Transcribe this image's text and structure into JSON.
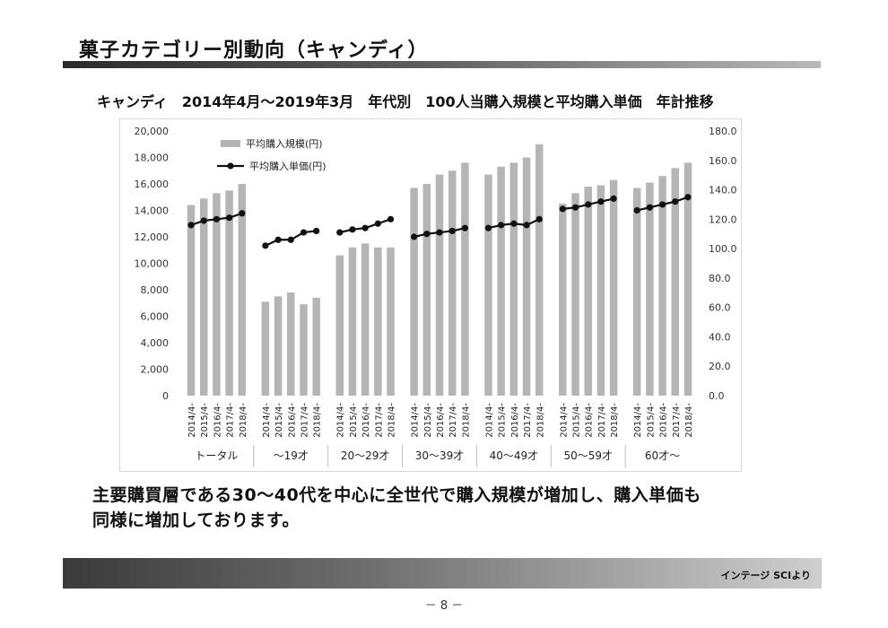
{
  "page": {
    "title": "菓子カテゴリー別動向（キャンディ）",
    "subtitle": "キャンディ　2014年4月～2019年3月　年代別　100人当購入規模と平均購入単価　年計推移",
    "summary_line1": "主要購買層である30～40代を中心に全世代で購入規模が増加し、購入単価も",
    "summary_line2": "同様に増加しております。",
    "footer_source": "インテージ SCIより",
    "page_number": "－ 8 －"
  },
  "colors": {
    "bar": "#b5b5b5",
    "line": "#111111",
    "grid": "#e6e6e6"
  },
  "chart_data": {
    "type": "bar",
    "categories": [
      "2014/4-",
      "2015/4-",
      "2016/4-",
      "2017/4-",
      "2018/4-"
    ],
    "groups": [
      "トータル",
      "～19才",
      "20～29才",
      "30～39才",
      "40～49才",
      "50～59才",
      "60才～"
    ],
    "legend": [
      "平均購入規模(円)",
      "平均購入単価(円)"
    ],
    "legend_position": "top-left",
    "y_left": {
      "min": 0,
      "max": 20000,
      "step": 2000,
      "ticks": [
        "0",
        "2,000",
        "4,000",
        "6,000",
        "8,000",
        "10,000",
        "12,000",
        "14,000",
        "16,000",
        "18,000",
        "20,000"
      ]
    },
    "y_right": {
      "min": 0,
      "max": 180,
      "step": 20,
      "ticks": [
        "0.0",
        "20.0",
        "40.0",
        "60.0",
        "80.0",
        "100.0",
        "120.0",
        "140.0",
        "160.0",
        "180.0"
      ]
    },
    "grid": false,
    "series": [
      {
        "name": "平均購入規模(円)",
        "type": "bar",
        "axis": "left",
        "values": [
          [
            14400,
            14900,
            15300,
            15500,
            16000
          ],
          [
            7100,
            7500,
            7800,
            6900,
            7400
          ],
          [
            10600,
            11200,
            11500,
            11200,
            11200
          ],
          [
            15700,
            16000,
            16700,
            17000,
            17600
          ],
          [
            16700,
            17300,
            17600,
            18000,
            19000
          ],
          [
            14500,
            15300,
            15800,
            15900,
            16300
          ],
          [
            15700,
            16100,
            16600,
            17200,
            17600
          ]
        ]
      },
      {
        "name": "平均購入単価(円)",
        "type": "line",
        "axis": "right",
        "values": [
          [
            116,
            119,
            120,
            121,
            124
          ],
          [
            102,
            106,
            106,
            111,
            112
          ],
          [
            111,
            113,
            114,
            117,
            120
          ],
          [
            108,
            110,
            111,
            112,
            114
          ],
          [
            114,
            116,
            117,
            116,
            120
          ],
          [
            127,
            128,
            130,
            132,
            134
          ],
          [
            126,
            128,
            130,
            132,
            135
          ]
        ]
      }
    ]
  }
}
